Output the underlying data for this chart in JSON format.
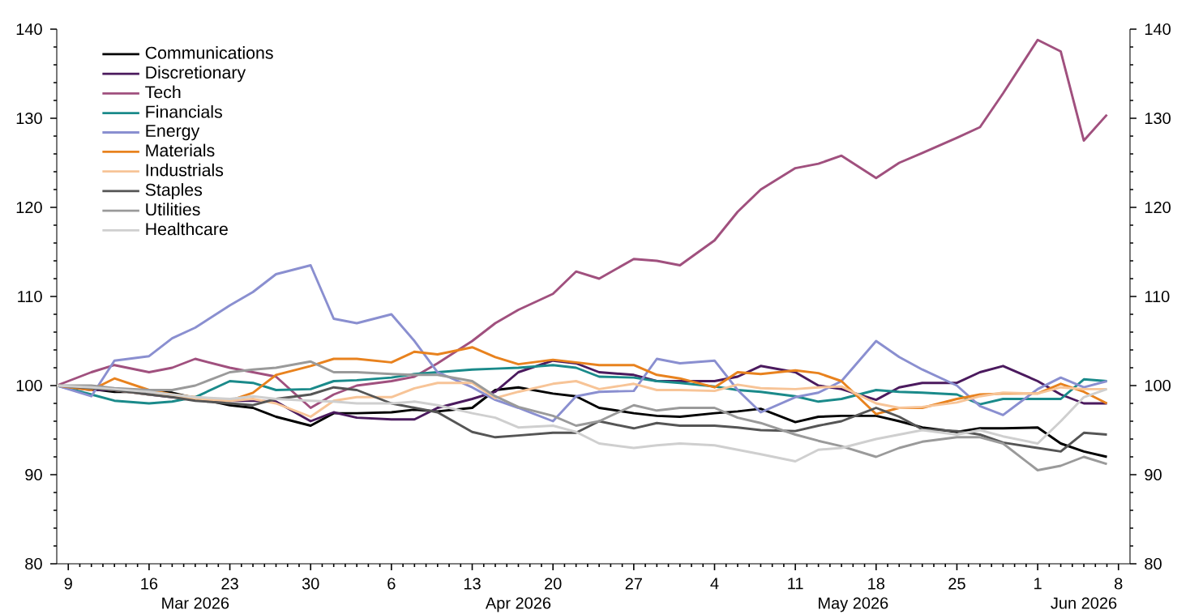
{
  "chart_data": {
    "type": "line",
    "x": [
      "2026-03-08",
      "2026-03-11",
      "2026-03-13",
      "2026-03-16",
      "2026-03-18",
      "2026-03-20",
      "2026-03-23",
      "2026-03-25",
      "2026-03-27",
      "2026-03-30",
      "2026-04-01",
      "2026-04-03",
      "2026-04-06",
      "2026-04-08",
      "2026-04-10",
      "2026-04-13",
      "2026-04-15",
      "2026-04-17",
      "2026-04-20",
      "2026-04-22",
      "2026-04-24",
      "2026-04-27",
      "2026-04-29",
      "2026-05-01",
      "2026-05-04",
      "2026-05-06",
      "2026-05-08",
      "2026-05-11",
      "2026-05-13",
      "2026-05-15",
      "2026-05-18",
      "2026-05-20",
      "2026-05-22",
      "2026-05-25",
      "2026-05-27",
      "2026-05-29",
      "2026-06-01",
      "2026-06-03",
      "2026-06-05",
      "2026-06-07"
    ],
    "series": [
      {
        "name": "Communications",
        "color": "#000000",
        "values": [
          100,
          99.6,
          99.3,
          99.3,
          99.2,
          98.6,
          97.8,
          97.5,
          96.5,
          95.5,
          96.9,
          96.9,
          97,
          97.3,
          97.1,
          97.5,
          99.5,
          99.8,
          99.1,
          98.8,
          97.5,
          96.9,
          96.6,
          96.5,
          96.9,
          97.1,
          97.4,
          95.9,
          96.5,
          96.6,
          96.6,
          96,
          95.3,
          94.8,
          95.2,
          95.2,
          95.3,
          93.5,
          92.6,
          92
        ]
      },
      {
        "name": "Discretionary",
        "color": "#4b1a5e",
        "values": [
          100,
          99.5,
          99.5,
          99,
          98.7,
          98.5,
          98.3,
          98.3,
          98.2,
          96,
          97,
          96.4,
          96.2,
          96.2,
          97.5,
          98.5,
          99.3,
          101.5,
          102.8,
          102.5,
          101.5,
          101.2,
          100.5,
          100.5,
          100.5,
          101,
          102.2,
          101.5,
          100,
          99.6,
          98.4,
          99.8,
          100.3,
          100.3,
          101.5,
          102.2,
          100.5,
          99,
          98,
          98
        ]
      },
      {
        "name": "Tech",
        "color": "#a0507e",
        "values": [
          100,
          101.5,
          102.3,
          101.5,
          102,
          103,
          102,
          101.5,
          101,
          97.5,
          99,
          100,
          100.5,
          101,
          102.5,
          105,
          107,
          108.5,
          110.3,
          112.8,
          112,
          114.2,
          114,
          113.5,
          116.3,
          119.5,
          122,
          124.4,
          124.9,
          125.8,
          123.3,
          125,
          126.1,
          127.8,
          129,
          132.8,
          138.8,
          137.5,
          127.5,
          130.4
        ]
      },
      {
        "name": "Financials",
        "color": "#1a8a8a",
        "values": [
          100,
          99,
          98.3,
          98,
          98.2,
          98.7,
          100.5,
          100.3,
          99.5,
          99.6,
          100.5,
          100.6,
          100.9,
          101.3,
          101.5,
          101.8,
          101.9,
          102,
          102.3,
          102,
          101,
          100.9,
          100.5,
          100.3,
          99.9,
          99.5,
          99.3,
          98.8,
          98.2,
          98.5,
          99.5,
          99.3,
          99.2,
          99,
          97.9,
          98.5,
          98.5,
          98.5,
          100.7,
          100.5
        ]
      },
      {
        "name": "Energy",
        "color": "#8a8fd0",
        "values": [
          100,
          98.8,
          102.8,
          103.3,
          105.3,
          106.5,
          109,
          110.5,
          112.5,
          113.5,
          107.5,
          107,
          108,
          105,
          101.5,
          99.8,
          98.4,
          97.5,
          96,
          98.8,
          99.3,
          99.4,
          103,
          102.5,
          102.8,
          99.5,
          97,
          98.7,
          99.2,
          100.5,
          105,
          103.2,
          101.8,
          100,
          97.7,
          96.7,
          99.6,
          100.9,
          99.8,
          100.5
        ]
      },
      {
        "name": "Materials",
        "color": "#e8821e",
        "values": [
          100,
          99.5,
          100.8,
          99.5,
          99,
          98.7,
          98.3,
          99.2,
          101.2,
          102.2,
          103,
          103,
          102.6,
          103.8,
          103.5,
          104.3,
          103.2,
          102.4,
          102.9,
          102.6,
          102.3,
          102.3,
          101.2,
          100.8,
          99.8,
          101.5,
          101.3,
          101.7,
          101.4,
          100.5,
          96.8,
          97.5,
          97.5,
          98.5,
          99,
          99.1,
          99.1,
          100.2,
          99.3,
          98
        ]
      },
      {
        "name": "Industrials",
        "color": "#f7c497",
        "values": [
          100,
          99.8,
          99.5,
          99,
          98.8,
          98.5,
          98.3,
          98.5,
          98,
          96.5,
          98.3,
          98.7,
          98.7,
          99.7,
          100.3,
          100.3,
          98.6,
          99.3,
          100.2,
          100.5,
          99.6,
          100.2,
          99.5,
          99.5,
          99.4,
          100.1,
          99.7,
          99.6,
          99.8,
          99.9,
          98,
          97.5,
          97.6,
          98.1,
          98.8,
          99.2,
          99.1,
          99.8,
          99.6,
          99.6
        ]
      },
      {
        "name": "Staples",
        "color": "#555555",
        "values": [
          100,
          99.7,
          99.5,
          99,
          98.7,
          98.3,
          98,
          97.8,
          98.5,
          99,
          99.8,
          99.5,
          98,
          97.5,
          97,
          94.8,
          94.2,
          94.4,
          94.7,
          94.7,
          96,
          95.2,
          95.8,
          95.5,
          95.5,
          95.3,
          95,
          94.9,
          95.5,
          96,
          97.5,
          96.5,
          95.1,
          94.9,
          94.5,
          93.6,
          93,
          92.6,
          94.7,
          94.5
        ]
      },
      {
        "name": "Utilities",
        "color": "#9a9a9a",
        "values": [
          100,
          100,
          99.7,
          99.5,
          99.5,
          100,
          101.5,
          101.8,
          102,
          102.7,
          101.5,
          101.5,
          101.3,
          101.2,
          101.2,
          100.5,
          98.8,
          97.6,
          96.6,
          95.5,
          96,
          97.8,
          97.2,
          97.5,
          97.5,
          96.4,
          95.8,
          94.5,
          93.8,
          93.2,
          92,
          93,
          93.7,
          94.2,
          94.2,
          93.5,
          90.5,
          91,
          92,
          91.2
        ]
      },
      {
        "name": "Healthcare",
        "color": "#cfcfcf",
        "values": [
          100,
          99.8,
          99.6,
          99.3,
          99,
          98.7,
          98.5,
          98.8,
          98.5,
          98.3,
          98.2,
          98,
          98,
          98.2,
          97.8,
          96.9,
          96.4,
          95.3,
          95.5,
          94.8,
          93.5,
          93,
          93.3,
          93.5,
          93.3,
          92.8,
          92.3,
          91.5,
          92.8,
          93,
          94,
          94.5,
          95,
          94.5,
          95,
          94.3,
          93.5,
          96,
          98.7,
          99.6
        ]
      }
    ],
    "xlim": [
      "2026-03-08",
      "2026-06-09"
    ],
    "xticks": [
      {
        "value": "2026-03-09",
        "label": "9"
      },
      {
        "value": "2026-03-16",
        "label": "16"
      },
      {
        "value": "2026-03-23",
        "label": "23"
      },
      {
        "value": "2026-03-30",
        "label": "30"
      },
      {
        "value": "2026-04-06",
        "label": "6"
      },
      {
        "value": "2026-04-13",
        "label": "13"
      },
      {
        "value": "2026-04-20",
        "label": "20"
      },
      {
        "value": "2026-04-27",
        "label": "27"
      },
      {
        "value": "2026-05-04",
        "label": "4"
      },
      {
        "value": "2026-05-11",
        "label": "11"
      },
      {
        "value": "2026-05-18",
        "label": "18"
      },
      {
        "value": "2026-05-25",
        "label": "25"
      },
      {
        "value": "2026-06-01",
        "label": "1"
      },
      {
        "value": "2026-06-08",
        "label": "8"
      }
    ],
    "x2lim": [
      "2026-03-08",
      "2026-06-09"
    ],
    "x2ticks": [
      {
        "value": "2026-03-20",
        "label": "Mar 2026"
      },
      {
        "value": "2026-04-17",
        "label": "Apr 2026"
      },
      {
        "value": "2026-05-16",
        "label": "May 2026"
      },
      {
        "value": "2026-06-05",
        "label": "Jun 2026"
      }
    ],
    "ylim": [
      80,
      140
    ],
    "yticks": [
      80,
      90,
      100,
      110,
      120,
      130,
      140
    ],
    "y2lim": [
      80,
      140
    ],
    "y2ticks": [
      80,
      90,
      100,
      110,
      120,
      130,
      140
    ],
    "legend": "top left"
  }
}
